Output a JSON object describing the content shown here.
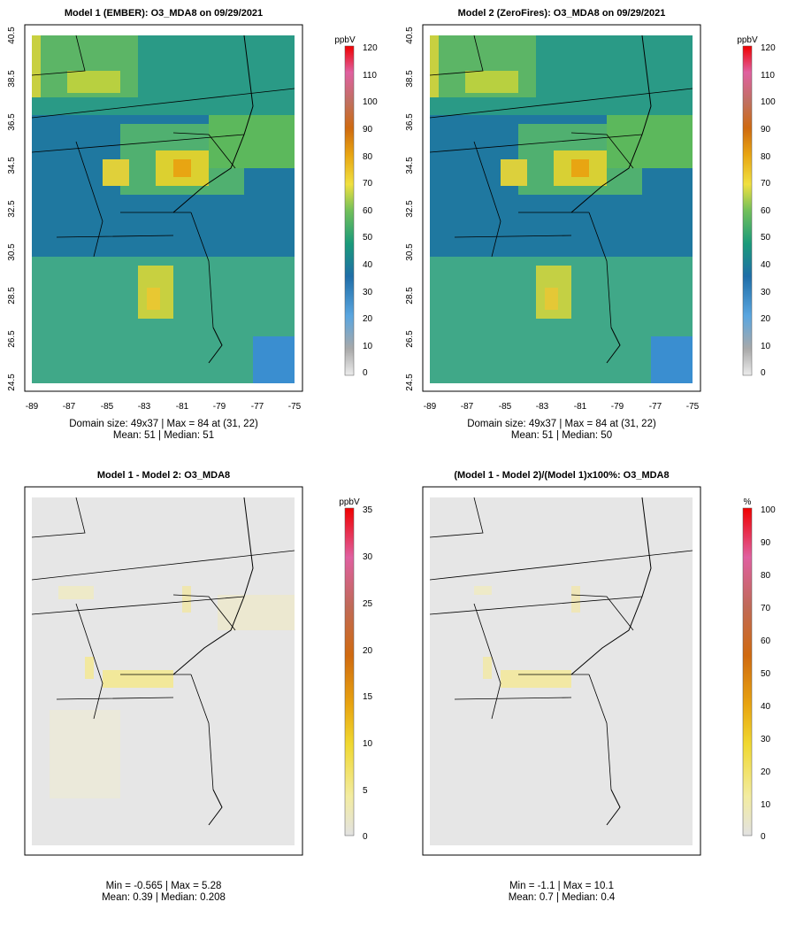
{
  "panels": [
    {
      "title": "Model 1 (EMBER): O3_MDA8 on 09/29/2021",
      "unit": "ppbV",
      "stats_line1": "Domain size: 49x37 | Max = 84 at (31, 22)",
      "stats_line2": "Mean: 51 |  Median: 51",
      "colorbar_ticks": [
        "120",
        "110",
        "100",
        "90",
        "80",
        "70",
        "60",
        "50",
        "40",
        "30",
        "20",
        "10",
        "0"
      ],
      "x_ticks": [
        "-89",
        "-87",
        "-85",
        "-83",
        "-81",
        "-79",
        "-77",
        "-75"
      ],
      "y_ticks": [
        "40.5",
        "38.5",
        "36.5",
        "34.5",
        "32.5",
        "30.5",
        "28.5",
        "26.5",
        "24.5"
      ],
      "map_type": "concentration"
    },
    {
      "title": "Model 2 (ZeroFires): O3_MDA8 on 09/29/2021",
      "unit": "ppbV",
      "stats_line1": "Domain size: 49x37 | Max = 84 at (31, 22)",
      "stats_line2": "Mean: 51 |  Median: 50",
      "colorbar_ticks": [
        "120",
        "110",
        "100",
        "90",
        "80",
        "70",
        "60",
        "50",
        "40",
        "30",
        "20",
        "10",
        "0"
      ],
      "x_ticks": [
        "-89",
        "-87",
        "-85",
        "-83",
        "-81",
        "-79",
        "-77",
        "-75"
      ],
      "y_ticks": [
        "40.5",
        "38.5",
        "36.5",
        "34.5",
        "32.5",
        "30.5",
        "28.5",
        "26.5",
        "24.5"
      ],
      "map_type": "concentration"
    },
    {
      "title": "Model 1 - Model 2: O3_MDA8",
      "unit": "ppbV",
      "stats_line1": "Min = -0.565 | Max = 5.28",
      "stats_line2": "Mean: 0.39 |  Median: 0.208",
      "colorbar_ticks": [
        "35",
        "30",
        "25",
        "20",
        "15",
        "10",
        "5",
        "0"
      ],
      "map_type": "difference"
    },
    {
      "title": "(Model 1 - Model 2)/(Model 1)x100%: O3_MDA8",
      "unit": "%",
      "stats_line1": "Min = -1.1 | Max = 10.1",
      "stats_line2": "Mean: 0.7 |  Median: 0.4",
      "colorbar_ticks": [
        "100",
        "90",
        "80",
        "70",
        "60",
        "50",
        "40",
        "30",
        "20",
        "10",
        "0"
      ],
      "map_type": "difference"
    }
  ]
}
